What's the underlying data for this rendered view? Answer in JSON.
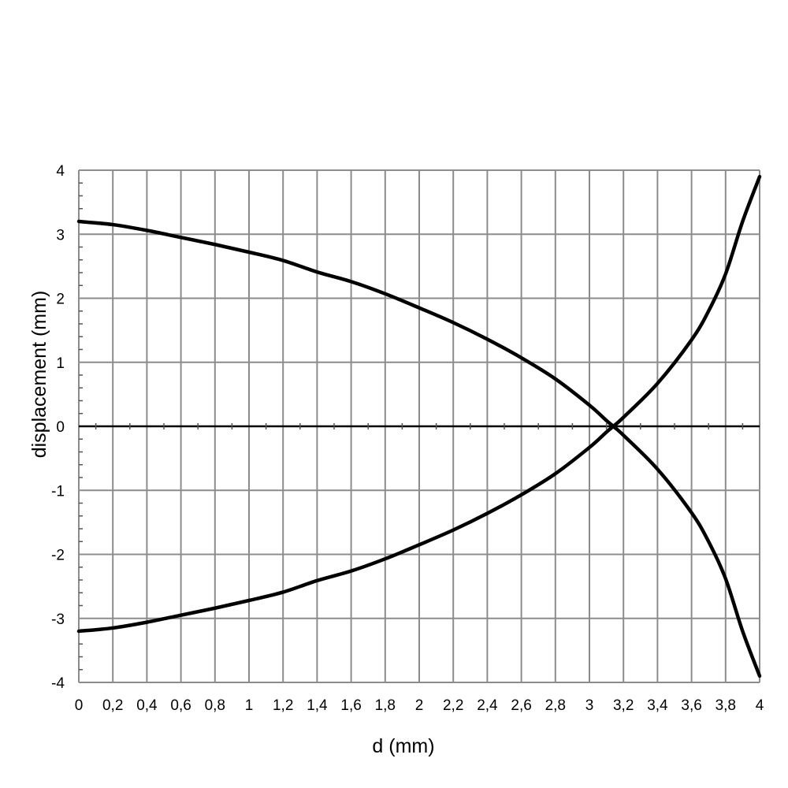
{
  "chart_data": {
    "type": "line",
    "xlabel": "d (mm)",
    "ylabel": "displacement (mm)",
    "xlim": [
      0,
      4
    ],
    "ylim": [
      -4,
      4
    ],
    "x_ticks": [
      "0",
      "0,2",
      "0,4",
      "0,6",
      "0,8",
      "1",
      "1,2",
      "1,4",
      "1,6",
      "1,8",
      "2",
      "2,2",
      "2,4",
      "2,6",
      "2,8",
      "3",
      "3,2",
      "3,4",
      "3,6",
      "3,8",
      "4"
    ],
    "y_ticks": [
      "4",
      "3",
      "2",
      "1",
      "0",
      "-1",
      "-2",
      "-3",
      "-4"
    ],
    "grid": true,
    "colors": {
      "grid": "#8c8c8c",
      "series": "#000000",
      "zero_line": "#000000"
    },
    "series": [
      {
        "x": [
          0,
          0.2,
          0.4,
          0.6,
          0.8,
          1.0,
          1.2,
          1.4,
          1.6,
          1.8,
          2.0,
          2.2,
          2.4,
          2.6,
          2.8,
          3.0,
          3.1,
          3.14,
          3.2,
          3.4,
          3.6,
          3.7,
          3.8,
          3.9,
          4.0
        ],
        "values": [
          3.2,
          3.15,
          3.06,
          2.95,
          2.84,
          2.72,
          2.59,
          2.41,
          2.26,
          2.07,
          1.85,
          1.62,
          1.36,
          1.07,
          0.74,
          0.33,
          0.09,
          0.0,
          -0.14,
          -0.67,
          -1.35,
          -1.8,
          -2.38,
          -3.2,
          -3.9
        ]
      },
      {
        "x": [
          0,
          0.2,
          0.4,
          0.6,
          0.8,
          1.0,
          1.2,
          1.4,
          1.6,
          1.8,
          2.0,
          2.2,
          2.4,
          2.6,
          2.8,
          3.0,
          3.1,
          3.14,
          3.2,
          3.4,
          3.6,
          3.7,
          3.8,
          3.9,
          4.0
        ],
        "values": [
          -3.2,
          -3.15,
          -3.06,
          -2.95,
          -2.84,
          -2.72,
          -2.59,
          -2.41,
          -2.26,
          -2.07,
          -1.85,
          -1.62,
          -1.36,
          -1.07,
          -0.74,
          -0.33,
          -0.09,
          0.0,
          0.14,
          0.67,
          1.35,
          1.8,
          2.38,
          3.2,
          3.9
        ]
      }
    ]
  }
}
